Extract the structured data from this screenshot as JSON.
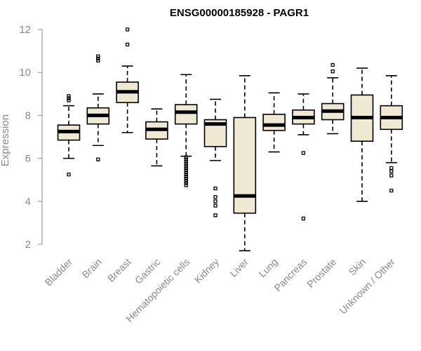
{
  "chart_data": {
    "type": "boxplot",
    "title": "ENSG00000185928 - PAGR1",
    "xlabel": "",
    "ylabel": "Expression",
    "ylim": [
      1.5,
      12.5
    ],
    "yticks": [
      2,
      4,
      6,
      8,
      10,
      12
    ],
    "colors": {
      "box_fill": "#efe8d2",
      "stroke": "#000000",
      "axis": "#888888"
    },
    "categories": [
      "Bladder",
      "Brain",
      "Breast",
      "Gastric",
      "Hematopoietic cells",
      "Kidney",
      "Liver",
      "Lung",
      "Pancreas",
      "Prostate",
      "Skin",
      "Unknown / Other"
    ],
    "boxes": [
      {
        "name": "Bladder",
        "whisker_low": 6.0,
        "q1": 6.85,
        "median": 7.25,
        "q3": 7.55,
        "whisker_high": 8.45,
        "outliers": [
          5.25,
          8.7,
          8.8,
          8.9
        ]
      },
      {
        "name": "Brain",
        "whisker_low": 6.6,
        "q1": 7.6,
        "median": 8.0,
        "q3": 8.35,
        "whisker_high": 9.0,
        "outliers": [
          5.95,
          10.55,
          10.65,
          10.75
        ]
      },
      {
        "name": "Breast",
        "whisker_low": 7.2,
        "q1": 8.6,
        "median": 9.1,
        "q3": 9.55,
        "whisker_high": 10.3,
        "outliers": [
          11.3,
          12.0
        ]
      },
      {
        "name": "Gastric",
        "whisker_low": 5.65,
        "q1": 6.9,
        "median": 7.35,
        "q3": 7.7,
        "whisker_high": 8.3,
        "outliers": []
      },
      {
        "name": "Hematopoietic cells",
        "whisker_low": 6.1,
        "q1": 7.6,
        "median": 8.15,
        "q3": 8.5,
        "whisker_high": 9.9,
        "outliers": [
          4.75,
          4.85,
          4.95,
          5.05,
          5.15,
          5.25,
          5.35,
          5.45,
          5.55,
          5.65,
          5.75,
          5.85,
          5.95,
          6.05
        ]
      },
      {
        "name": "Kidney",
        "whisker_low": 5.9,
        "q1": 6.55,
        "median": 7.6,
        "q3": 7.8,
        "whisker_high": 8.75,
        "outliers": [
          3.35,
          3.8,
          4.0,
          4.2,
          4.6
        ]
      },
      {
        "name": "Liver",
        "whisker_low": 1.7,
        "q1": 3.45,
        "median": 4.25,
        "q3": 7.9,
        "whisker_high": 9.85,
        "outliers": []
      },
      {
        "name": "Lung",
        "whisker_low": 6.3,
        "q1": 7.3,
        "median": 7.55,
        "q3": 8.05,
        "whisker_high": 9.05,
        "outliers": []
      },
      {
        "name": "Pancreas",
        "whisker_low": 7.1,
        "q1": 7.6,
        "median": 7.9,
        "q3": 8.25,
        "whisker_high": 9.0,
        "outliers": [
          3.2,
          6.25
        ]
      },
      {
        "name": "Prostate",
        "whisker_low": 7.15,
        "q1": 7.8,
        "median": 8.2,
        "q3": 8.55,
        "whisker_high": 9.75,
        "outliers": [
          10.05,
          10.35
        ]
      },
      {
        "name": "Skin",
        "whisker_low": 4.0,
        "q1": 6.8,
        "median": 7.9,
        "q3": 8.95,
        "whisker_high": 10.2,
        "outliers": []
      },
      {
        "name": "Unknown / Other",
        "whisker_low": 5.8,
        "q1": 7.35,
        "median": 7.9,
        "q3": 8.45,
        "whisker_high": 9.85,
        "outliers": [
          4.5,
          5.2,
          5.4,
          5.55
        ]
      }
    ]
  }
}
